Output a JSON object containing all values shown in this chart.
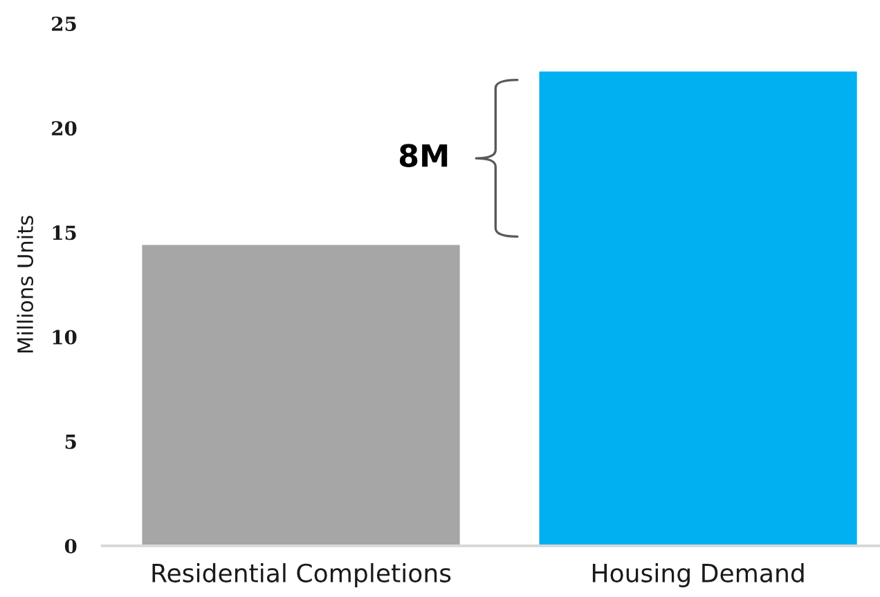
{
  "chart_data": {
    "type": "bar",
    "categories": [
      "Residential Completions",
      "Housing Demand"
    ],
    "values": [
      14.4,
      22.7
    ],
    "colors": [
      "#a6a6a6",
      "#00b0f0"
    ],
    "ylabel": "Millions Units",
    "ylim": [
      0,
      25
    ],
    "yticks": [
      0,
      5,
      10,
      15,
      20,
      25
    ],
    "annotations": [
      "8M"
    ]
  }
}
